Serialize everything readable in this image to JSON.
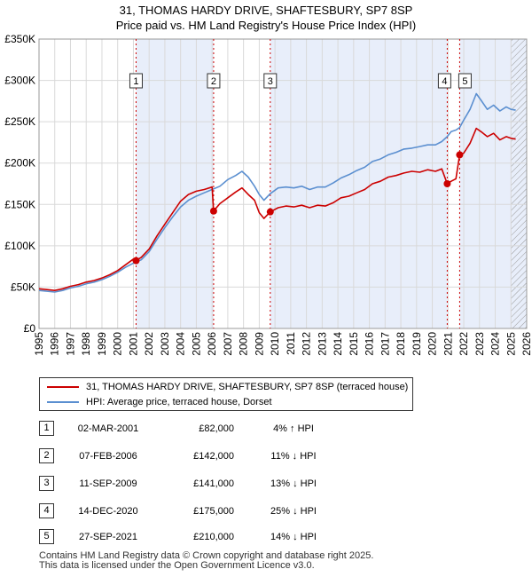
{
  "title": "31, THOMAS HARDY DRIVE, SHAFTESBURY, SP7 8SP",
  "subtitle": "Price paid vs. HM Land Registry's House Price Index (HPI)",
  "colors": {
    "property": "#cc0000",
    "hpi": "#5b8fd0",
    "shade": "#e8eefa",
    "vline": "#cc0000",
    "grid": "#d9d9d9",
    "hatch": "#999999"
  },
  "chart_data": {
    "type": "line",
    "title": "31, THOMAS HARDY DRIVE, SHAFTESBURY, SP7 8SP",
    "subtitle": "Price paid vs. HM Land Registry's House Price Index (HPI)",
    "xlabel": "",
    "ylabel": "",
    "xlim": [
      1995,
      2026
    ],
    "ylim": [
      0,
      350000
    ],
    "grid": true,
    "y_ticks": [
      0,
      50000,
      100000,
      150000,
      200000,
      250000,
      300000,
      350000
    ],
    "y_tick_labels": [
      "£0",
      "£50K",
      "£100K",
      "£150K",
      "£200K",
      "£250K",
      "£300K",
      "£350K"
    ],
    "x_ticks": [
      1995,
      1996,
      1997,
      1998,
      1999,
      2000,
      2001,
      2002,
      2003,
      2004,
      2005,
      2006,
      2007,
      2008,
      2009,
      2010,
      2011,
      2012,
      2013,
      2014,
      2015,
      2016,
      2017,
      2018,
      2019,
      2020,
      2021,
      2022,
      2023,
      2024,
      2025,
      2026
    ],
    "x_tick_labels": [
      "1995",
      "1996",
      "1997",
      "1998",
      "1999",
      "2000",
      "2001",
      "2002",
      "2003",
      "2004",
      "2005",
      "2006",
      "2007",
      "2008",
      "2009",
      "2010",
      "2011",
      "2012",
      "2013",
      "2014",
      "2015",
      "2016",
      "2017",
      "2018",
      "2019",
      "2020",
      "2021",
      "2022",
      "2023",
      "2024",
      "2025",
      "2026"
    ],
    "hatch_from": 2025.0,
    "shaded_bands": [
      [
        2001.17,
        2006.1
      ],
      [
        2009.7,
        2020.95
      ],
      [
        2021.74,
        2026
      ]
    ],
    "series": [
      {
        "name": "31, THOMAS HARDY DRIVE, SHAFTESBURY, SP7 8SP (terraced house)",
        "color": "#cc0000",
        "x": [
          1995.0,
          1995.5,
          1996.0,
          1996.5,
          1997.0,
          1997.5,
          1998.0,
          1998.5,
          1999.0,
          1999.5,
          2000.0,
          2000.5,
          2001.0,
          2001.17,
          2001.5,
          2002.0,
          2002.5,
          2003.0,
          2003.5,
          2004.0,
          2004.5,
          2005.0,
          2005.5,
          2006.0,
          2006.1,
          2006.5,
          2007.0,
          2007.5,
          2007.9,
          2008.3,
          2008.7,
          2009.0,
          2009.3,
          2009.7,
          2010.2,
          2010.7,
          2011.2,
          2011.7,
          2012.2,
          2012.7,
          2013.2,
          2013.7,
          2014.2,
          2014.7,
          2015.2,
          2015.7,
          2016.2,
          2016.7,
          2017.2,
          2017.7,
          2018.2,
          2018.7,
          2019.2,
          2019.7,
          2020.2,
          2020.6,
          2020.95,
          2021.2,
          2021.5,
          2021.74,
          2022.0,
          2022.4,
          2022.8,
          2023.1,
          2023.5,
          2023.9,
          2024.3,
          2024.7,
          2025.0,
          2025.3
        ],
        "values": [
          48000,
          47000,
          46000,
          48000,
          51000,
          53000,
          56000,
          58000,
          61000,
          65000,
          70000,
          77000,
          84000,
          82000,
          86000,
          96000,
          112000,
          126000,
          140000,
          154000,
          162000,
          166000,
          168000,
          171000,
          142000,
          151000,
          158000,
          165000,
          170000,
          162000,
          155000,
          140000,
          133000,
          141000,
          146000,
          148000,
          147000,
          149000,
          146000,
          149000,
          148000,
          152000,
          158000,
          160000,
          164000,
          168000,
          175000,
          178000,
          183000,
          185000,
          188000,
          190000,
          189000,
          192000,
          190000,
          193000,
          175000,
          178000,
          181000,
          210000,
          212000,
          224000,
          242000,
          238000,
          232000,
          236000,
          228000,
          232000,
          230000,
          229000
        ]
      },
      {
        "name": "HPI: Average price, terraced house, Dorset",
        "color": "#5b8fd0",
        "x": [
          1995.0,
          1995.5,
          1996.0,
          1996.5,
          1997.0,
          1997.5,
          1998.0,
          1998.5,
          1999.0,
          1999.5,
          2000.0,
          2000.5,
          2001.0,
          2001.5,
          2002.0,
          2002.5,
          2003.0,
          2003.5,
          2004.0,
          2004.5,
          2005.0,
          2005.5,
          2006.0,
          2006.5,
          2007.0,
          2007.5,
          2007.9,
          2008.3,
          2008.7,
          2009.0,
          2009.3,
          2009.7,
          2010.2,
          2010.7,
          2011.2,
          2011.7,
          2012.2,
          2012.7,
          2013.2,
          2013.7,
          2014.2,
          2014.7,
          2015.2,
          2015.7,
          2016.2,
          2016.7,
          2017.2,
          2017.7,
          2018.2,
          2018.7,
          2019.2,
          2019.7,
          2020.2,
          2020.6,
          2020.95,
          2021.2,
          2021.5,
          2021.74,
          2022.0,
          2022.4,
          2022.8,
          2023.1,
          2023.5,
          2023.9,
          2024.3,
          2024.7,
          2025.0,
          2025.3
        ],
        "values": [
          46000,
          45000,
          44000,
          46000,
          49000,
          51000,
          54000,
          56000,
          59000,
          63000,
          68000,
          74000,
          79000,
          83000,
          93000,
          108000,
          122000,
          135000,
          147000,
          155000,
          160000,
          164000,
          168000,
          172000,
          180000,
          185000,
          190000,
          183000,
          172000,
          162000,
          155000,
          163000,
          170000,
          171000,
          170000,
          172000,
          168000,
          171000,
          171000,
          176000,
          182000,
          186000,
          191000,
          195000,
          202000,
          205000,
          210000,
          213000,
          217000,
          218000,
          220000,
          222000,
          222000,
          226000,
          232000,
          238000,
          240000,
          243000,
          252000,
          265000,
          284000,
          276000,
          265000,
          270000,
          263000,
          268000,
          265000,
          264000
        ]
      }
    ],
    "sales": [
      {
        "id": "1",
        "x": 2001.17,
        "value": 82000
      },
      {
        "id": "2",
        "x": 2006.1,
        "value": 142000
      },
      {
        "id": "3",
        "x": 2009.7,
        "value": 141000
      },
      {
        "id": "4",
        "x": 2020.95,
        "value": 175000
      },
      {
        "id": "5",
        "x": 2021.74,
        "value": 210000
      }
    ]
  },
  "legend": {
    "property": "31, THOMAS HARDY DRIVE, SHAFTESBURY, SP7 8SP (terraced house)",
    "hpi": "HPI: Average price, terraced house, Dorset"
  },
  "transactions": [
    {
      "id": "1",
      "date": "02-MAR-2001",
      "price": "£82,000",
      "diff": "4% ↑ HPI"
    },
    {
      "id": "2",
      "date": "07-FEB-2006",
      "price": "£142,000",
      "diff": "11% ↓ HPI"
    },
    {
      "id": "3",
      "date": "11-SEP-2009",
      "price": "£141,000",
      "diff": "13% ↓ HPI"
    },
    {
      "id": "4",
      "date": "14-DEC-2020",
      "price": "£175,000",
      "diff": "25% ↓ HPI"
    },
    {
      "id": "5",
      "date": "27-SEP-2021",
      "price": "£210,000",
      "diff": "14% ↓ HPI"
    }
  ],
  "footer": {
    "line1": "Contains HM Land Registry data © Crown copyright and database right 2025.",
    "line2": "This data is licensed under the Open Government Licence v3.0."
  }
}
